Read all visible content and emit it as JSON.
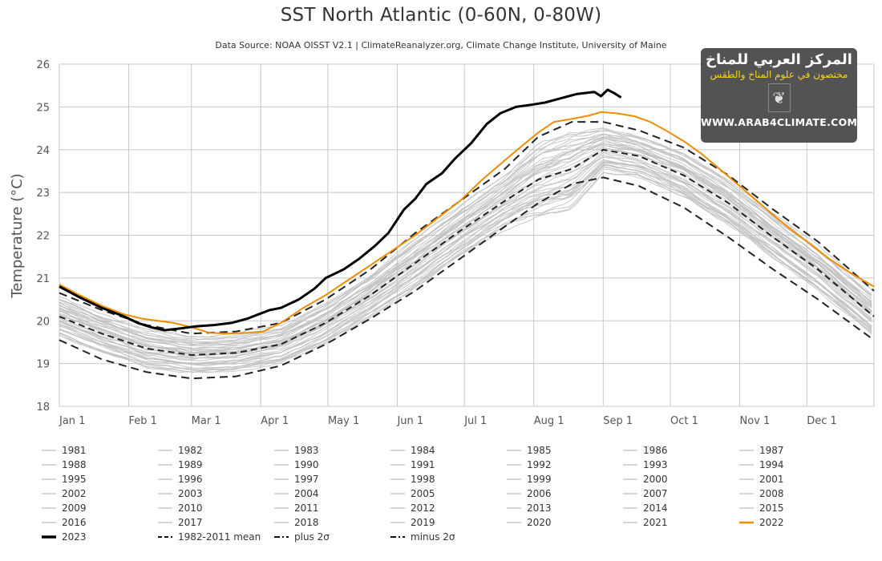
{
  "chart_data": {
    "type": "line",
    "title": "SST North Atlantic (0-60N, 0-80W)",
    "subtitle": "Data Source: NOAA OISST V2.1 | ClimateReanalyzer.org, Climate Change Institute, University of Maine",
    "xlabel": "",
    "ylabel": "Temperature (°C)",
    "ylim": [
      18,
      26
    ],
    "xlim_day_of_year": [
      1,
      365
    ],
    "y_ticks": [
      "18",
      "19",
      "20",
      "21",
      "22",
      "23",
      "24",
      "25",
      "26"
    ],
    "x_ticks": [
      {
        "label": "Jan 1",
        "day": 1
      },
      {
        "label": "Feb 1",
        "day": 32
      },
      {
        "label": "Mar 1",
        "day": 60
      },
      {
        "label": "Apr 1",
        "day": 91
      },
      {
        "label": "May 1",
        "day": 121
      },
      {
        "label": "Jun 1",
        "day": 152
      },
      {
        "label": "Jul 1",
        "day": 182
      },
      {
        "label": "Aug 1",
        "day": 213
      },
      {
        "label": "Sep 1",
        "day": 244
      },
      {
        "label": "Oct 1",
        "day": 274
      },
      {
        "label": "Nov 1",
        "day": 305
      },
      {
        "label": "Dec 1",
        "day": 335
      }
    ],
    "grid": true,
    "legend_position": "bottom",
    "highlight_series": [
      {
        "name": "2023",
        "color": "#000000",
        "style": "solid-thick",
        "x": [
          1,
          10,
          20,
          30,
          36,
          42,
          48,
          55,
          62,
          70,
          78,
          85,
          90,
          95,
          100,
          108,
          115,
          120,
          128,
          135,
          142,
          148,
          155,
          160,
          165,
          172,
          178,
          185,
          192,
          198,
          205,
          212,
          218,
          225,
          232,
          240,
          243,
          246,
          249,
          252
        ],
        "y": [
          20.8,
          20.55,
          20.3,
          20.1,
          19.95,
          19.85,
          19.78,
          19.82,
          19.87,
          19.9,
          19.95,
          20.05,
          20.15,
          20.25,
          20.3,
          20.5,
          20.75,
          21.0,
          21.2,
          21.45,
          21.75,
          22.05,
          22.6,
          22.85,
          23.2,
          23.45,
          23.8,
          24.15,
          24.6,
          24.85,
          25.0,
          25.05,
          25.1,
          25.2,
          25.3,
          25.35,
          25.25,
          25.4,
          25.32,
          25.22
        ]
      },
      {
        "name": "2022",
        "color": "#f08c00",
        "style": "solid",
        "x": [
          1,
          10,
          20,
          30,
          38,
          45,
          52,
          60,
          68,
          76,
          85,
          92,
          100,
          110,
          120,
          130,
          140,
          150,
          160,
          170,
          180,
          190,
          200,
          208,
          215,
          222,
          230,
          238,
          243,
          250,
          258,
          265,
          272,
          280,
          288,
          296,
          305,
          315,
          325,
          335,
          345,
          355,
          365
        ],
        "y": [
          20.85,
          20.6,
          20.35,
          20.15,
          20.05,
          20.0,
          19.95,
          19.85,
          19.72,
          19.7,
          19.72,
          19.75,
          19.95,
          20.3,
          20.6,
          20.95,
          21.3,
          21.65,
          22.0,
          22.4,
          22.8,
          23.3,
          23.75,
          24.1,
          24.4,
          24.65,
          24.72,
          24.8,
          24.88,
          24.85,
          24.78,
          24.65,
          24.45,
          24.2,
          23.9,
          23.55,
          23.15,
          22.7,
          22.25,
          21.85,
          21.45,
          21.1,
          20.8
        ]
      }
    ],
    "reference_series": [
      {
        "name": "1982-2011 mean",
        "color": "#222222",
        "style": "dashed",
        "x": [
          1,
          20,
          40,
          60,
          80,
          100,
          120,
          140,
          160,
          180,
          200,
          215,
          230,
          244,
          260,
          280,
          300,
          320,
          340,
          365
        ],
        "y": [
          20.1,
          19.7,
          19.35,
          19.2,
          19.25,
          19.45,
          19.95,
          20.6,
          21.35,
          22.1,
          22.8,
          23.3,
          23.55,
          24.0,
          23.85,
          23.4,
          22.75,
          21.95,
          21.2,
          20.1
        ]
      },
      {
        "name": "plus 2σ",
        "color": "#222222",
        "style": "dash-dot",
        "x": [
          1,
          20,
          40,
          60,
          80,
          100,
          120,
          140,
          160,
          180,
          200,
          215,
          230,
          244,
          260,
          280,
          300,
          320,
          340,
          365
        ],
        "y": [
          20.65,
          20.25,
          19.9,
          19.7,
          19.75,
          19.95,
          20.5,
          21.2,
          22.05,
          22.8,
          23.55,
          24.3,
          24.65,
          24.65,
          24.45,
          24.05,
          23.4,
          22.6,
          21.85,
          20.7
        ]
      },
      {
        "name": "minus 2σ",
        "color": "#222222",
        "style": "dash-dot",
        "x": [
          1,
          20,
          40,
          60,
          80,
          100,
          120,
          140,
          160,
          180,
          200,
          215,
          230,
          244,
          260,
          280,
          300,
          320,
          340,
          365
        ],
        "y": [
          19.55,
          19.1,
          18.8,
          18.65,
          18.7,
          18.95,
          19.45,
          20.05,
          20.7,
          21.45,
          22.2,
          22.75,
          23.2,
          23.35,
          23.15,
          22.65,
          21.95,
          21.2,
          20.5,
          19.55
        ]
      }
    ],
    "background_years": {
      "color": "#c0c0c0",
      "years": [
        "1981",
        "1982",
        "1983",
        "1984",
        "1985",
        "1986",
        "1987",
        "1988",
        "1989",
        "1990",
        "1991",
        "1992",
        "1993",
        "1994",
        "1995",
        "1996",
        "1997",
        "1998",
        "1999",
        "2000",
        "2001",
        "2002",
        "2003",
        "2004",
        "2005",
        "2006",
        "2007",
        "2008",
        "2009",
        "2010",
        "2011",
        "2012",
        "2013",
        "2014",
        "2015",
        "2016",
        "2017",
        "2018",
        "2019",
        "2020",
        "2021"
      ],
      "note": "individual years fall mostly between minus 2σ and plus 2σ envelope"
    },
    "legend": [
      "1981",
      "1982",
      "1983",
      "1984",
      "1985",
      "1986",
      "1987",
      "1988",
      "1989",
      "1990",
      "1991",
      "1992",
      "1993",
      "1994",
      "1995",
      "1996",
      "1997",
      "1998",
      "1999",
      "2000",
      "2001",
      "2002",
      "2003",
      "2004",
      "2005",
      "2006",
      "2007",
      "2008",
      "2009",
      "2010",
      "2011",
      "2012",
      "2013",
      "2014",
      "2015",
      "2016",
      "2017",
      "2018",
      "2019",
      "2020",
      "2021",
      "2022",
      "2023",
      "1982-2011 mean",
      "plus 2σ",
      "minus 2σ"
    ]
  },
  "watermark": {
    "line1": "المركز العربي للمناخ",
    "line2": "مختصون في علوم المناخ والطقس",
    "emblem": "calligraphy-emblem",
    "line3": "WWW.ARAB4CLIMATE.COM",
    "accent_color": "#f5d020"
  }
}
